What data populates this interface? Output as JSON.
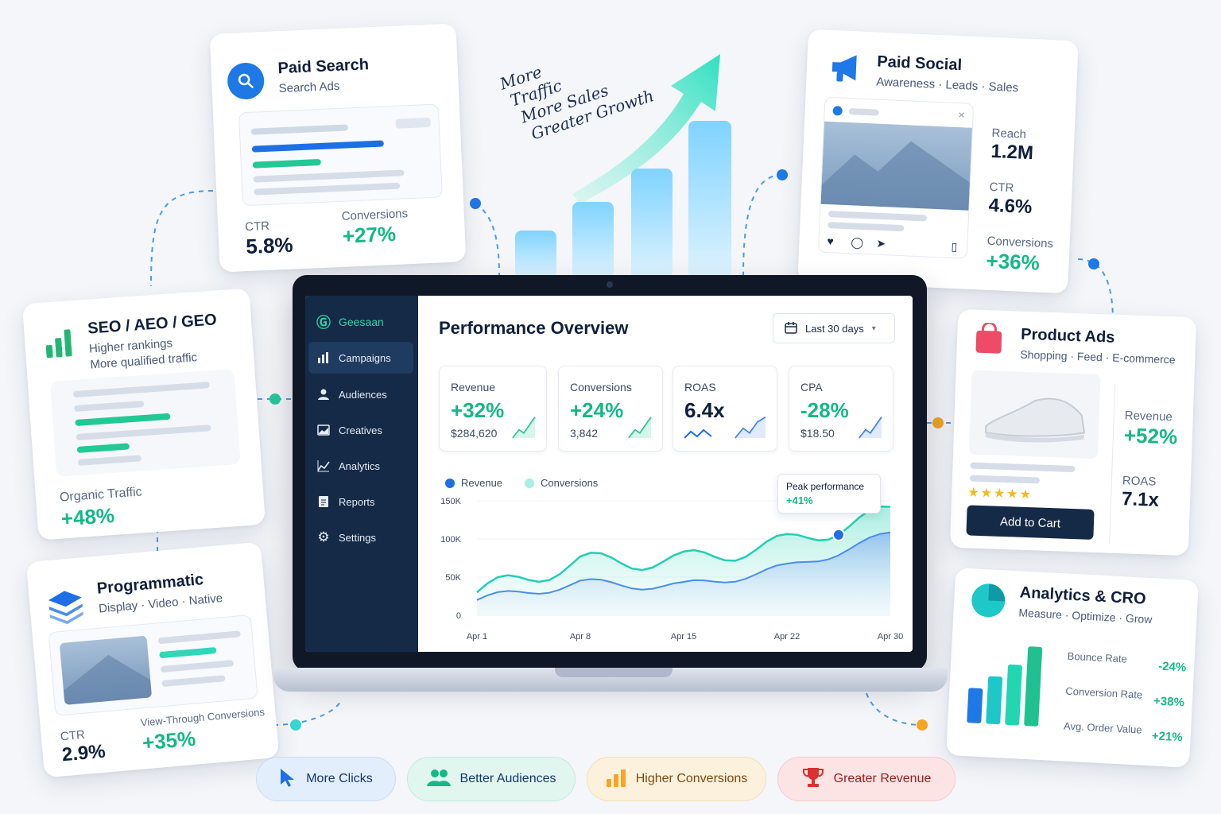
{
  "handwritten": {
    "line1": "More",
    "line2": "Traffic",
    "line3": "More Sales",
    "line4": "Greater Growth"
  },
  "paid_search": {
    "title": "Paid Search",
    "subtitle": "Search Ads",
    "ctr_label": "CTR",
    "ctr_value": "5.8%",
    "conv_label": "Conversions",
    "conv_value": "+27%"
  },
  "paid_social": {
    "title": "Paid Social",
    "subtitle": "Awareness · Leads · Sales",
    "reach_label": "Reach",
    "reach_value": "1.2M",
    "ctr_label": "CTR",
    "ctr_value": "4.6%",
    "conv_label": "Conversions",
    "conv_value": "+36%"
  },
  "seo": {
    "title": "SEO / AEO / GEO",
    "line1": "Higher rankings",
    "line2": "More qualified traffic",
    "traffic_label": "Organic Traffic",
    "traffic_value": "+48%"
  },
  "programmatic": {
    "title": "Programmatic",
    "subtitle": "Display · Video · Native",
    "ctr_label": "CTR",
    "ctr_value": "2.9%",
    "vtc_label": "View-Through Conversions",
    "vtc_value": "+35%"
  },
  "product_ads": {
    "title": "Product Ads",
    "subtitle": "Shopping · Feed · E-commerce",
    "revenue_label": "Revenue",
    "revenue_value": "+52%",
    "roas_label": "ROAS",
    "roas_value": "7.1x",
    "cta": "Add to Cart",
    "stars": "★★★★★"
  },
  "analytics_cro": {
    "title": "Analytics & CRO",
    "subtitle": "Measure · Optimize · Grow",
    "metrics": [
      {
        "label": "Bounce Rate",
        "value": "-24%"
      },
      {
        "label": "Conversion Rate",
        "value": "+38%"
      },
      {
        "label": "Avg. Order Value",
        "value": "+21%"
      }
    ]
  },
  "dashboard": {
    "brand": "Geesaan",
    "nav": [
      "Campaigns",
      "Audiences",
      "Creatives",
      "Analytics",
      "Reports",
      "Settings"
    ],
    "title": "Performance Overview",
    "date_range": "Last 30 days",
    "kpis": [
      {
        "label": "Revenue",
        "value": "+32%",
        "sub": "$284,620"
      },
      {
        "label": "Conversions",
        "value": "+24%",
        "sub": "3,842"
      },
      {
        "label": "ROAS",
        "value": "6.4x",
        "sub": ""
      },
      {
        "label": "CPA",
        "value": "-28%",
        "sub": "$18.50"
      }
    ],
    "legend": [
      "Revenue",
      "Conversions"
    ],
    "tooltip": {
      "title": "Peak performance",
      "value": "+41%"
    }
  },
  "chart_data": {
    "type": "area",
    "x": [
      "Apr 1",
      "Apr 8",
      "Apr 15",
      "Apr 22",
      "Apr 30"
    ],
    "ylim": [
      0,
      150000
    ],
    "yticks": [
      "150K",
      "100K",
      "50K",
      "0"
    ],
    "series": [
      {
        "name": "Revenue",
        "values": [
          20000,
          42000,
          38000,
          62000,
          105000
        ]
      },
      {
        "name": "Conversions",
        "values": [
          30000,
          70000,
          72000,
          95000,
          135000
        ]
      }
    ]
  },
  "pills": [
    {
      "label": "More Clicks",
      "color": "#1e88e5"
    },
    {
      "label": "Better Audiences",
      "color": "#15b886"
    },
    {
      "label": "Higher Conversions",
      "color": "#f0a020"
    },
    {
      "label": "Greater Revenue",
      "color": "#d93030"
    }
  ]
}
